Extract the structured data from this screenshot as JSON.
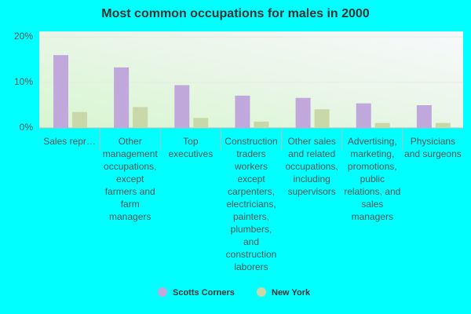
{
  "chart_data": {
    "type": "bar",
    "title": "Most common occupations for males in 2000",
    "categories": [
      "Sales repr…",
      "Other management occupations, except farmers and farm managers",
      "Top executives",
      "Construction traders workers except carpenters, electricians, painters, plumbers, and construction laborers",
      "Other sales and related occupations, including supervisors",
      "Advertising, marketing, promotions, public relations, and sales managers",
      "Physicians and surgeons"
    ],
    "series": [
      {
        "name": "Scotts Corners",
        "color": "#c0a8dc",
        "values": [
          16.0,
          13.3,
          9.4,
          7.1,
          6.6,
          5.4,
          5.0
        ]
      },
      {
        "name": "New York",
        "color": "#c8d8a8",
        "values": [
          3.5,
          4.6,
          2.2,
          1.4,
          4.1,
          1.1,
          1.1
        ]
      }
    ],
    "ylim": [
      0,
      20
    ],
    "yticks": [
      {
        "value": 0,
        "label": "0%"
      },
      {
        "value": 10,
        "label": "10%"
      },
      {
        "value": 20,
        "label": "20%"
      }
    ],
    "grid": true
  }
}
